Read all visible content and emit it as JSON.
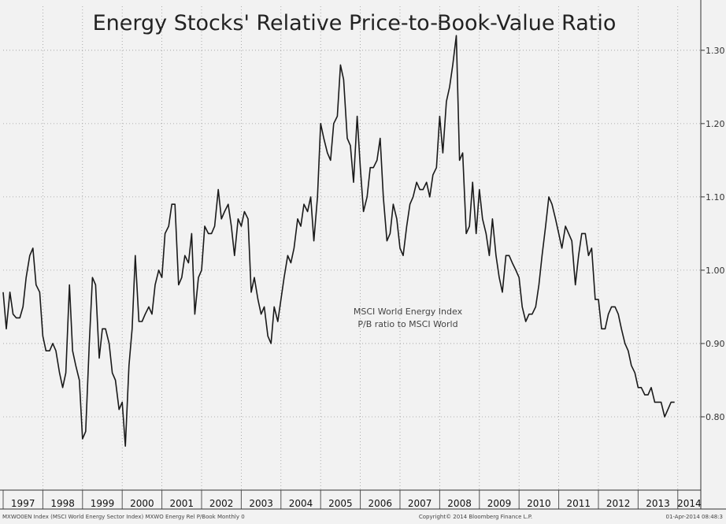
{
  "chart_data": {
    "type": "line",
    "title": "Energy Stocks' Relative Price-to-Book-Value Ratio",
    "annotation": [
      "MSCI World Energy Index",
      "P/B ratio to MSCI World"
    ],
    "ylim": [
      0.7,
      1.36
    ],
    "y_ticks": [
      "1.30",
      "1.20",
      "1.10",
      "1.00",
      "0.90",
      "0.80"
    ],
    "y_tick_values": [
      1.3,
      1.2,
      1.1,
      1.0,
      0.9,
      0.8
    ],
    "x_tick_labels": [
      "1997",
      "1998",
      "1999",
      "2000",
      "2001",
      "2002",
      "2003",
      "2004",
      "2005",
      "2006",
      "2007",
      "2008",
      "2009",
      "2010",
      "2011",
      "2012",
      "2013",
      "2014"
    ],
    "grid": true,
    "series": [
      {
        "points": [
          [
            1997.0,
            0.97
          ],
          [
            1997.08,
            0.92
          ],
          [
            1997.17,
            0.97
          ],
          [
            1997.25,
            0.94
          ],
          [
            1997.33,
            0.935
          ],
          [
            1997.42,
            0.935
          ],
          [
            1997.5,
            0.95
          ],
          [
            1997.58,
            0.99
          ],
          [
            1997.67,
            1.02
          ],
          [
            1997.75,
            1.03
          ],
          [
            1997.83,
            0.98
          ],
          [
            1997.92,
            0.97
          ],
          [
            1998.0,
            0.91
          ],
          [
            1998.08,
            0.89
          ],
          [
            1998.17,
            0.89
          ],
          [
            1998.25,
            0.9
          ],
          [
            1998.33,
            0.89
          ],
          [
            1998.42,
            0.86
          ],
          [
            1998.5,
            0.84
          ],
          [
            1998.58,
            0.86
          ],
          [
            1998.67,
            0.98
          ],
          [
            1998.75,
            0.89
          ],
          [
            1998.83,
            0.87
          ],
          [
            1998.92,
            0.85
          ],
          [
            1999.0,
            0.77
          ],
          [
            1999.08,
            0.78
          ],
          [
            1999.17,
            0.9
          ],
          [
            1999.25,
            0.99
          ],
          [
            1999.33,
            0.98
          ],
          [
            1999.42,
            0.88
          ],
          [
            1999.5,
            0.92
          ],
          [
            1999.58,
            0.92
          ],
          [
            1999.67,
            0.9
          ],
          [
            1999.75,
            0.86
          ],
          [
            1999.83,
            0.85
          ],
          [
            1999.92,
            0.81
          ],
          [
            2000.0,
            0.82
          ],
          [
            2000.08,
            0.76
          ],
          [
            2000.17,
            0.87
          ],
          [
            2000.25,
            0.92
          ],
          [
            2000.33,
            1.02
          ],
          [
            2000.42,
            0.93
          ],
          [
            2000.5,
            0.93
          ],
          [
            2000.58,
            0.94
          ],
          [
            2000.67,
            0.95
          ],
          [
            2000.75,
            0.94
          ],
          [
            2000.83,
            0.98
          ],
          [
            2000.92,
            1.0
          ],
          [
            2001.0,
            0.99
          ],
          [
            2001.08,
            1.05
          ],
          [
            2001.17,
            1.06
          ],
          [
            2001.25,
            1.09
          ],
          [
            2001.33,
            1.09
          ],
          [
            2001.42,
            0.98
          ],
          [
            2001.5,
            0.99
          ],
          [
            2001.58,
            1.02
          ],
          [
            2001.67,
            1.01
          ],
          [
            2001.75,
            1.05
          ],
          [
            2001.83,
            0.94
          ],
          [
            2001.92,
            0.99
          ],
          [
            2002.0,
            1.0
          ],
          [
            2002.08,
            1.06
          ],
          [
            2002.17,
            1.05
          ],
          [
            2002.25,
            1.05
          ],
          [
            2002.33,
            1.06
          ],
          [
            2002.42,
            1.11
          ],
          [
            2002.5,
            1.07
          ],
          [
            2002.58,
            1.08
          ],
          [
            2002.67,
            1.09
          ],
          [
            2002.75,
            1.06
          ],
          [
            2002.83,
            1.02
          ],
          [
            2002.92,
            1.07
          ],
          [
            2003.0,
            1.06
          ],
          [
            2003.08,
            1.08
          ],
          [
            2003.17,
            1.07
          ],
          [
            2003.25,
            0.97
          ],
          [
            2003.33,
            0.99
          ],
          [
            2003.42,
            0.96
          ],
          [
            2003.5,
            0.94
          ],
          [
            2003.58,
            0.95
          ],
          [
            2003.67,
            0.91
          ],
          [
            2003.75,
            0.9
          ],
          [
            2003.83,
            0.95
          ],
          [
            2003.92,
            0.93
          ],
          [
            2004.0,
            0.96
          ],
          [
            2004.08,
            0.99
          ],
          [
            2004.17,
            1.02
          ],
          [
            2004.25,
            1.01
          ],
          [
            2004.33,
            1.03
          ],
          [
            2004.42,
            1.07
          ],
          [
            2004.5,
            1.06
          ],
          [
            2004.58,
            1.09
          ],
          [
            2004.67,
            1.08
          ],
          [
            2004.75,
            1.1
          ],
          [
            2004.83,
            1.04
          ],
          [
            2004.92,
            1.1
          ],
          [
            2005.0,
            1.2
          ],
          [
            2005.08,
            1.18
          ],
          [
            2005.17,
            1.16
          ],
          [
            2005.25,
            1.15
          ],
          [
            2005.33,
            1.2
          ],
          [
            2005.42,
            1.21
          ],
          [
            2005.5,
            1.28
          ],
          [
            2005.58,
            1.26
          ],
          [
            2005.67,
            1.18
          ],
          [
            2005.75,
            1.17
          ],
          [
            2005.83,
            1.12
          ],
          [
            2005.92,
            1.21
          ],
          [
            2006.0,
            1.14
          ],
          [
            2006.08,
            1.08
          ],
          [
            2006.17,
            1.1
          ],
          [
            2006.25,
            1.14
          ],
          [
            2006.33,
            1.14
          ],
          [
            2006.42,
            1.15
          ],
          [
            2006.5,
            1.18
          ],
          [
            2006.58,
            1.1
          ],
          [
            2006.67,
            1.04
          ],
          [
            2006.75,
            1.05
          ],
          [
            2006.83,
            1.09
          ],
          [
            2006.92,
            1.07
          ],
          [
            2007.0,
            1.03
          ],
          [
            2007.08,
            1.02
          ],
          [
            2007.17,
            1.06
          ],
          [
            2007.25,
            1.09
          ],
          [
            2007.33,
            1.1
          ],
          [
            2007.42,
            1.12
          ],
          [
            2007.5,
            1.11
          ],
          [
            2007.58,
            1.11
          ],
          [
            2007.67,
            1.12
          ],
          [
            2007.75,
            1.1
          ],
          [
            2007.83,
            1.13
          ],
          [
            2007.92,
            1.14
          ],
          [
            2008.0,
            1.21
          ],
          [
            2008.08,
            1.16
          ],
          [
            2008.17,
            1.23
          ],
          [
            2008.25,
            1.25
          ],
          [
            2008.33,
            1.28
          ],
          [
            2008.42,
            1.32
          ],
          [
            2008.5,
            1.15
          ],
          [
            2008.58,
            1.16
          ],
          [
            2008.67,
            1.05
          ],
          [
            2008.75,
            1.06
          ],
          [
            2008.83,
            1.12
          ],
          [
            2008.92,
            1.05
          ],
          [
            2009.0,
            1.11
          ],
          [
            2009.08,
            1.07
          ],
          [
            2009.17,
            1.05
          ],
          [
            2009.25,
            1.02
          ],
          [
            2009.33,
            1.07
          ],
          [
            2009.42,
            1.02
          ],
          [
            2009.5,
            0.99
          ],
          [
            2009.58,
            0.97
          ],
          [
            2009.67,
            1.02
          ],
          [
            2009.75,
            1.02
          ],
          [
            2009.83,
            1.01
          ],
          [
            2009.92,
            1.0
          ],
          [
            2010.0,
            0.99
          ],
          [
            2010.08,
            0.95
          ],
          [
            2010.17,
            0.93
          ],
          [
            2010.25,
            0.94
          ],
          [
            2010.33,
            0.94
          ],
          [
            2010.42,
            0.95
          ],
          [
            2010.5,
            0.98
          ],
          [
            2010.58,
            1.02
          ],
          [
            2010.67,
            1.06
          ],
          [
            2010.75,
            1.1
          ],
          [
            2010.83,
            1.09
          ],
          [
            2010.92,
            1.07
          ],
          [
            2011.0,
            1.05
          ],
          [
            2011.08,
            1.03
          ],
          [
            2011.17,
            1.06
          ],
          [
            2011.25,
            1.05
          ],
          [
            2011.33,
            1.04
          ],
          [
            2011.42,
            0.98
          ],
          [
            2011.5,
            1.02
          ],
          [
            2011.58,
            1.05
          ],
          [
            2011.67,
            1.05
          ],
          [
            2011.75,
            1.02
          ],
          [
            2011.83,
            1.03
          ],
          [
            2011.92,
            0.96
          ],
          [
            2012.0,
            0.96
          ],
          [
            2012.08,
            0.92
          ],
          [
            2012.17,
            0.92
          ],
          [
            2012.25,
            0.94
          ],
          [
            2012.33,
            0.95
          ],
          [
            2012.42,
            0.95
          ],
          [
            2012.5,
            0.94
          ],
          [
            2012.58,
            0.92
          ],
          [
            2012.67,
            0.9
          ],
          [
            2012.75,
            0.89
          ],
          [
            2012.83,
            0.87
          ],
          [
            2012.92,
            0.86
          ],
          [
            2013.0,
            0.84
          ],
          [
            2013.08,
            0.84
          ],
          [
            2013.17,
            0.83
          ],
          [
            2013.25,
            0.83
          ],
          [
            2013.33,
            0.84
          ],
          [
            2013.42,
            0.82
          ],
          [
            2013.5,
            0.82
          ],
          [
            2013.58,
            0.82
          ],
          [
            2013.67,
            0.8
          ],
          [
            2013.75,
            0.81
          ],
          [
            2013.83,
            0.82
          ],
          [
            2013.92,
            0.82
          ]
        ]
      }
    ]
  },
  "footer": {
    "left": "MXWO0EN Index (MSCI World Energy Sector Index) MXWO Energy Rel P/Book Monthly 0",
    "center": "Copyright© 2014 Bloomberg Finance L.P.",
    "right": "01-Apr-2014 08:48:3"
  }
}
